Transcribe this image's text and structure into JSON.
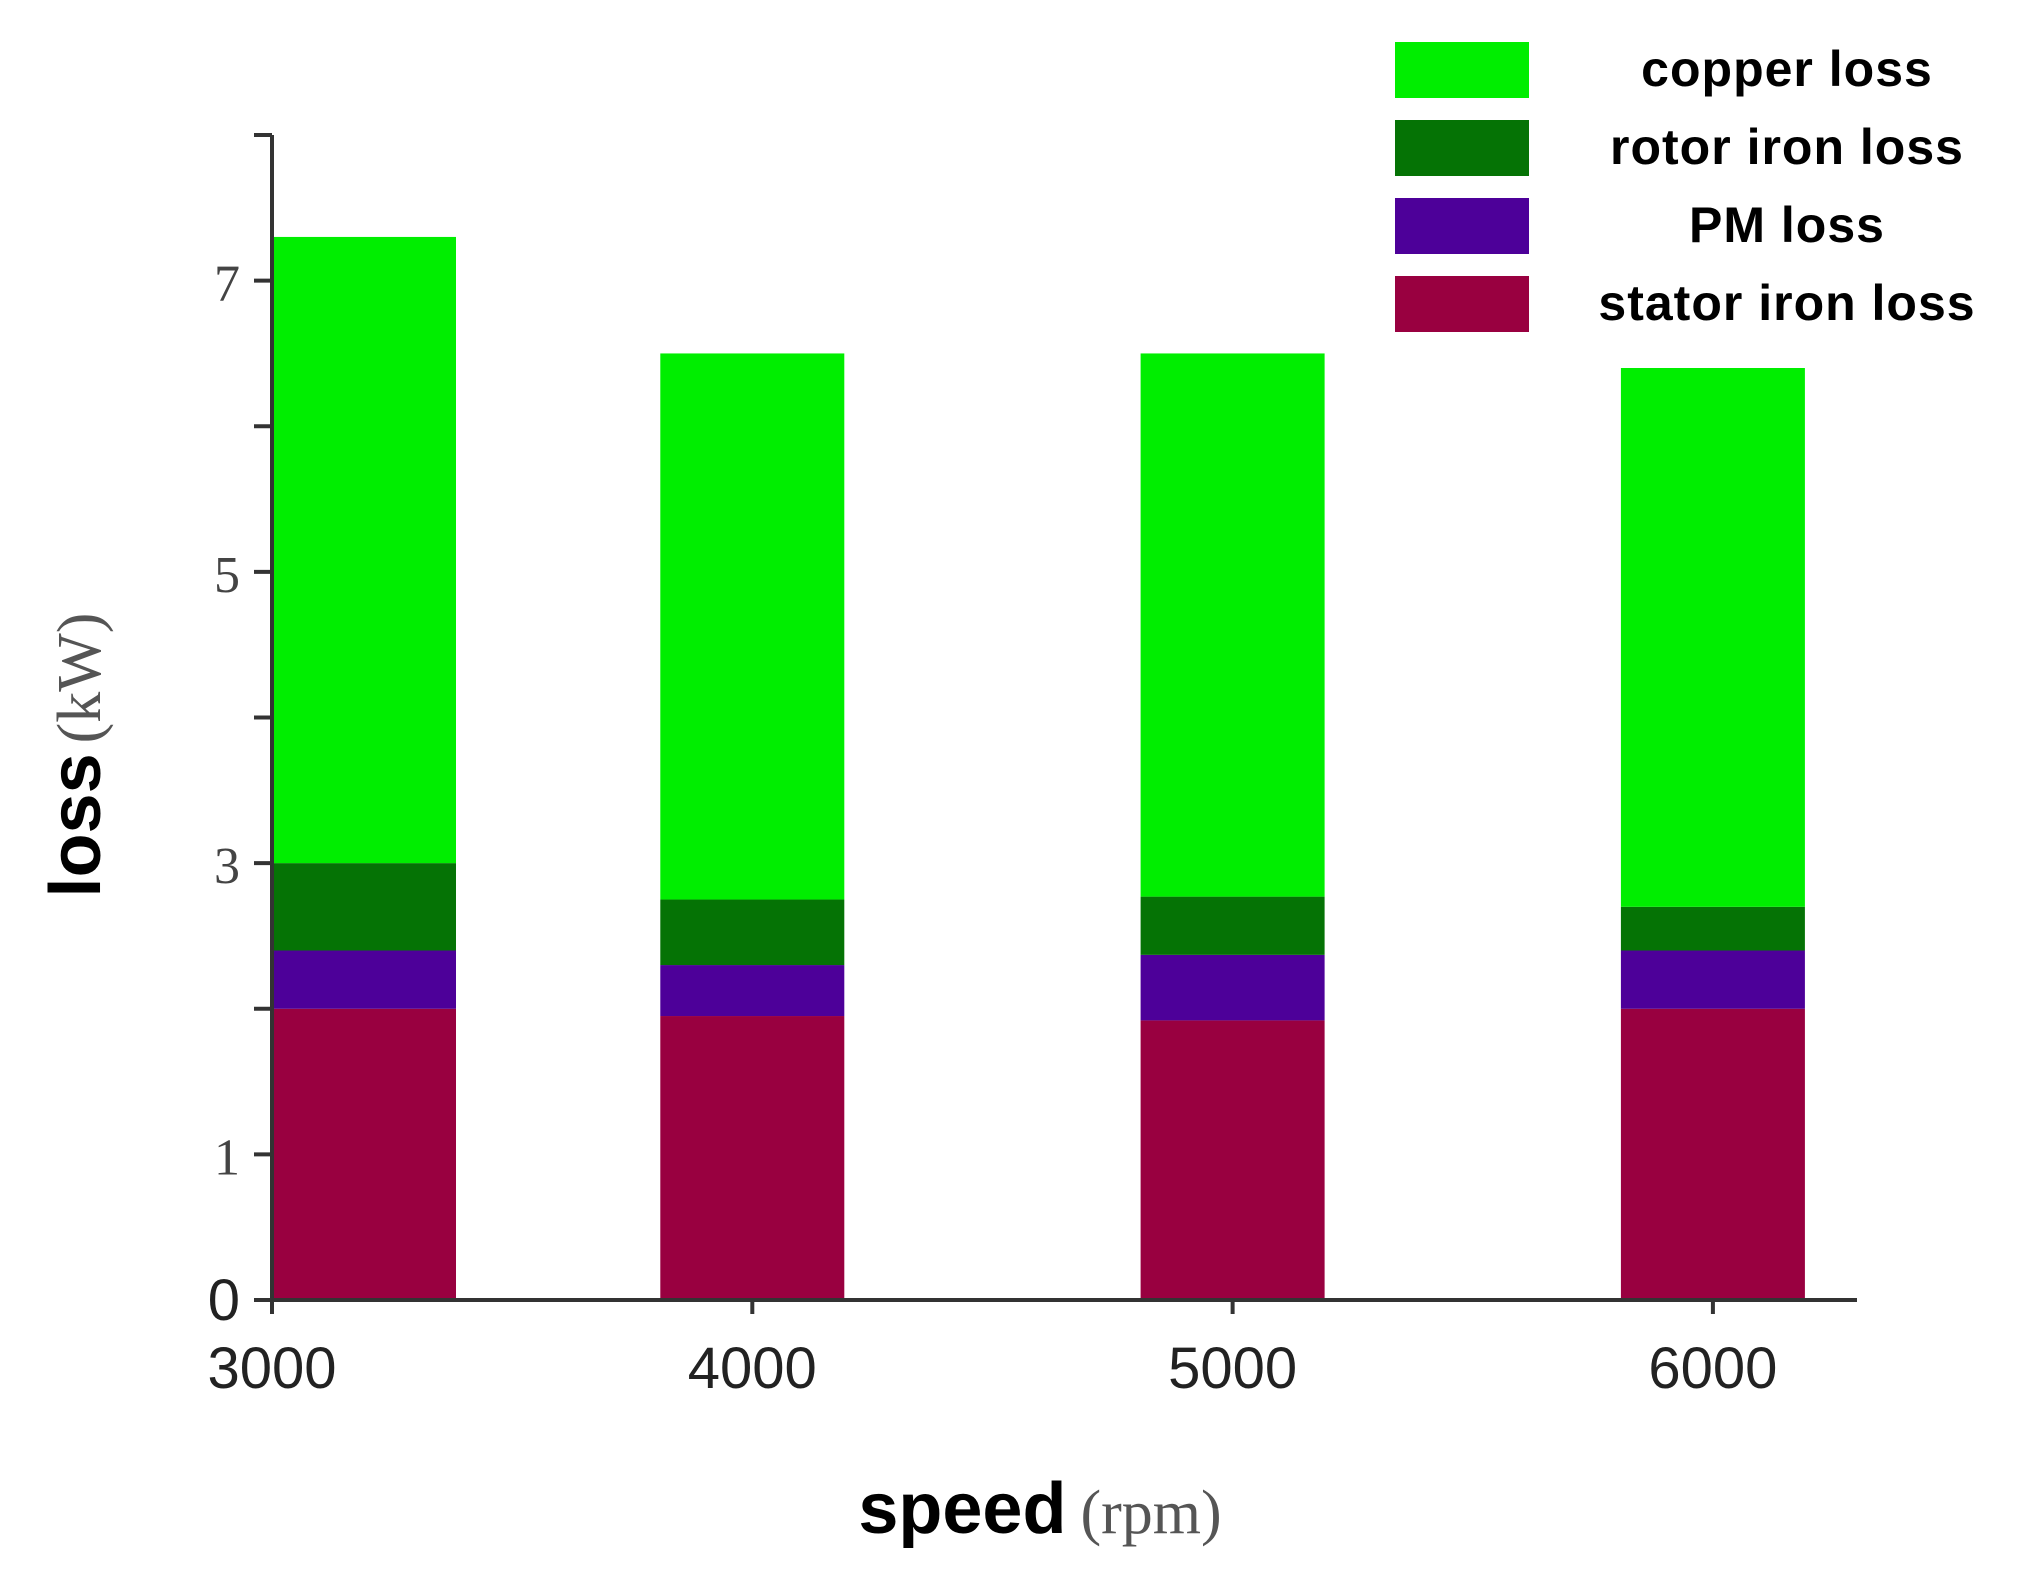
{
  "chart_data": {
    "type": "bar",
    "stacked": true,
    "categories": [
      "3000",
      "4000",
      "5000",
      "6000"
    ],
    "series": [
      {
        "name": "stator iron loss",
        "color": "#990040",
        "values": [
          2.0,
          1.95,
          1.92,
          2.0
        ]
      },
      {
        "name": "PM loss",
        "color": "#4d0099",
        "values": [
          0.4,
          0.35,
          0.45,
          0.4
        ]
      },
      {
        "name": "rotor iron loss",
        "color": "#057305",
        "values": [
          0.6,
          0.45,
          0.4,
          0.3
        ]
      },
      {
        "name": "copper loss",
        "color": "#00ee00",
        "values": [
          4.3,
          3.75,
          3.73,
          3.7
        ]
      }
    ],
    "legend_order": [
      "copper loss",
      "rotor iron loss",
      "PM loss",
      "stator iron loss"
    ],
    "xlabel_main": "speed",
    "xlabel_unit": "(rpm)",
    "ylabel_main": "loss",
    "ylabel_unit": "(kW)",
    "ylim": [
      0,
      8
    ],
    "yticks": [
      0,
      1,
      2,
      3,
      4,
      5,
      6,
      7,
      8
    ],
    "ytick_labels": [
      "0",
      "1",
      "",
      "3",
      "",
      "5",
      "",
      "7",
      ""
    ],
    "xlim": [
      3000,
      6300
    ],
    "grid": false,
    "legend_position": "top-right"
  }
}
